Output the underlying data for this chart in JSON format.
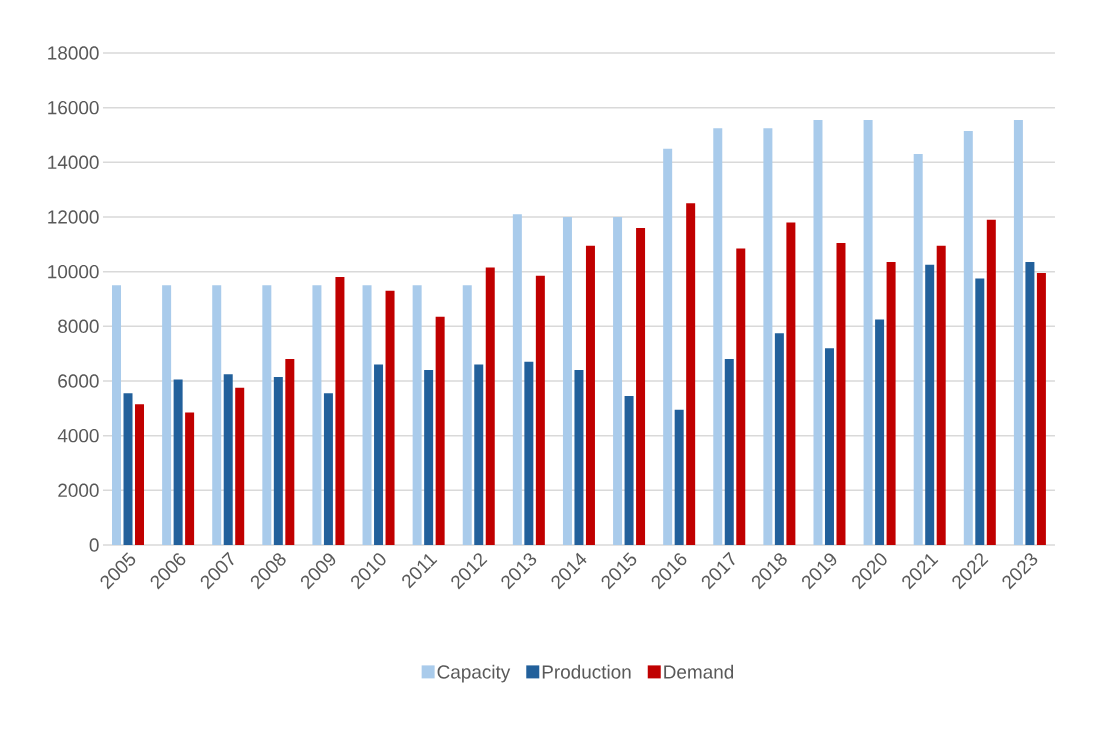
{
  "chart_data": {
    "type": "bar",
    "categories": [
      "2005",
      "2006",
      "2007",
      "2008",
      "2009",
      "2010",
      "2011",
      "2012",
      "2013",
      "2014",
      "2015",
      "2016",
      "2017",
      "2018",
      "2019",
      "2020",
      "2021",
      "2022",
      "2023"
    ],
    "series": [
      {
        "name": "Capacity",
        "color": "#a9cbeb",
        "values": [
          9500,
          9500,
          9500,
          9500,
          9500,
          9500,
          9500,
          9500,
          12100,
          12000,
          12000,
          14500,
          15250,
          15250,
          15550,
          15550,
          14300,
          15150,
          15550
        ]
      },
      {
        "name": "Production",
        "color": "#22609b",
        "values": [
          5550,
          6050,
          6250,
          6150,
          5550,
          6600,
          6400,
          6600,
          6700,
          6400,
          5450,
          4950,
          6800,
          7750,
          7200,
          8250,
          10250,
          9750,
          10350
        ]
      },
      {
        "name": "Demand",
        "color": "#c00000",
        "values": [
          5150,
          4850,
          5750,
          6800,
          9800,
          9300,
          8350,
          10150,
          9850,
          10950,
          11600,
          12500,
          10850,
          11800,
          11050,
          10350,
          10950,
          11900,
          9950
        ]
      }
    ],
    "ylim": [
      0,
      18000
    ],
    "yticks": [
      0,
      2000,
      4000,
      6000,
      8000,
      10000,
      12000,
      14000,
      16000,
      18000
    ],
    "grid": "y",
    "legend": "bottom"
  }
}
